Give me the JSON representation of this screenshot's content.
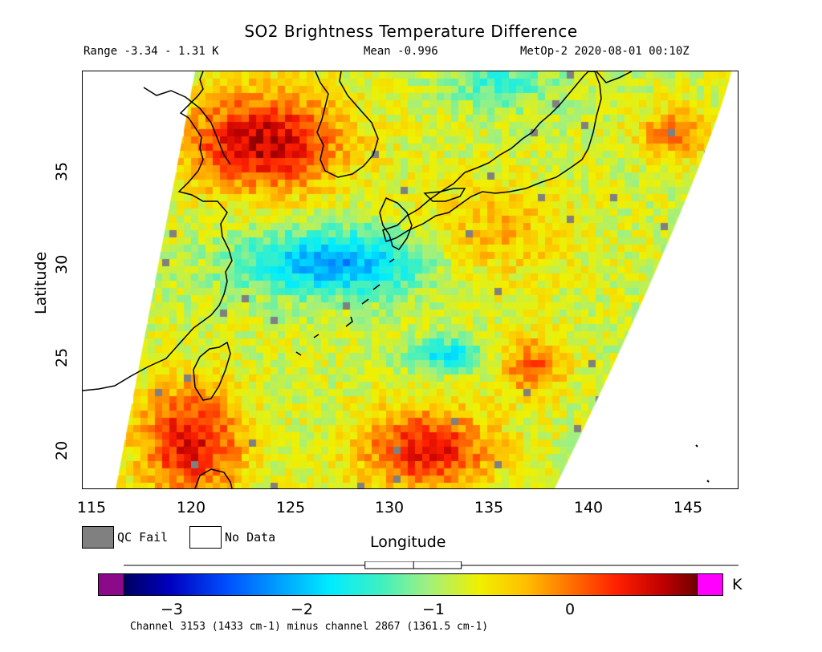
{
  "title": "SO2 Brightness Temperature Difference",
  "subtitle": {
    "range": "Range -3.34 - 1.31 K",
    "mean": "Mean -0.996",
    "satellite": "MetOp-2 2020-08-01 00:10Z"
  },
  "axes": {
    "xlabel": "Longitude",
    "ylabel": "Latitude",
    "xticks": [
      "115",
      "120",
      "125",
      "130",
      "135",
      "140",
      "145"
    ],
    "yticks": [
      "20",
      "25",
      "30",
      "35"
    ],
    "xlim": [
      114.5,
      147.5
    ],
    "ylim": [
      17.5,
      40
    ]
  },
  "legend": {
    "qc_fail": "QC Fail",
    "no_data": "No Data",
    "qc_color": "#808080",
    "no_data_color": "#ffffff"
  },
  "colorbar": {
    "unit": "K",
    "ticks": [
      "−3",
      "−2",
      "−1",
      "0"
    ],
    "min": -3.3,
    "max": 0.9,
    "under_color": "#8a0a8a",
    "over_color": "#ff00ff",
    "range_marker": {
      "min": -3.34,
      "mean": -0.996,
      "max": 1.31
    }
  },
  "footnote": "Channel 3153 (1433 cm-1) minus channel 2867 (1361.5 cm-1)"
}
